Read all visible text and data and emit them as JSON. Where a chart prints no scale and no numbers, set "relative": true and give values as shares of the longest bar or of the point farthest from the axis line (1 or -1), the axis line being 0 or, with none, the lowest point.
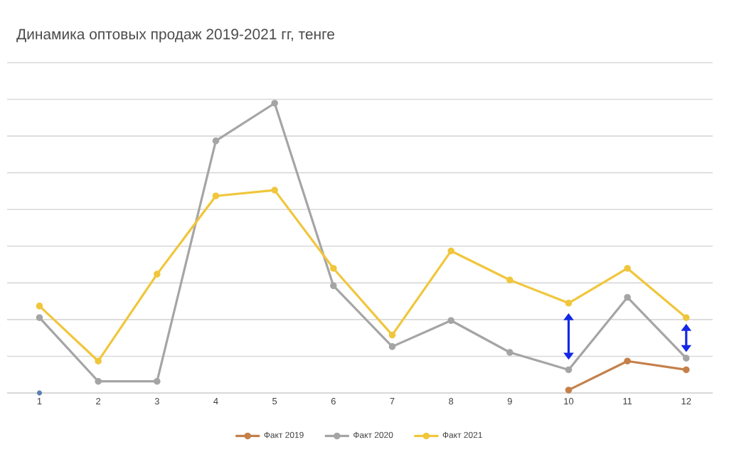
{
  "chart_data": {
    "type": "line",
    "title": "Динамика оптовых продаж 2019-2021 гг, тенге",
    "relative": true,
    "categories": [
      "1",
      "2",
      "3",
      "4",
      "5",
      "6",
      "7",
      "8",
      "9",
      "10",
      "11",
      "12"
    ],
    "series": [
      {
        "name": "Факт 2019",
        "color": "#c5804a",
        "values": [
          null,
          null,
          null,
          null,
          null,
          null,
          null,
          null,
          null,
          0.01,
          0.11,
          0.08
        ]
      },
      {
        "name": "Факт 2020",
        "color": "#a5a5a5",
        "values": [
          0.26,
          0.04,
          0.04,
          0.87,
          1,
          0.37,
          0.16,
          0.25,
          0.14,
          0.08,
          0.33,
          0.12
        ]
      },
      {
        "name": "Факт 2021",
        "color": "#f0c63c",
        "values": [
          0.3,
          0.11,
          0.41,
          0.68,
          0.7,
          0.43,
          0.2,
          0.49,
          0.39,
          0.31,
          0.43,
          0.26
        ]
      },
      {
        "type": "scatter",
        "color": "#5b7fb0",
        "values": [
          0,
          null,
          null,
          null,
          null,
          null,
          null,
          null,
          null,
          null,
          null,
          null
        ]
      }
    ],
    "grid": "y",
    "legend": "bottom",
    "marker": "circle",
    "tick_labels": "x"
  }
}
